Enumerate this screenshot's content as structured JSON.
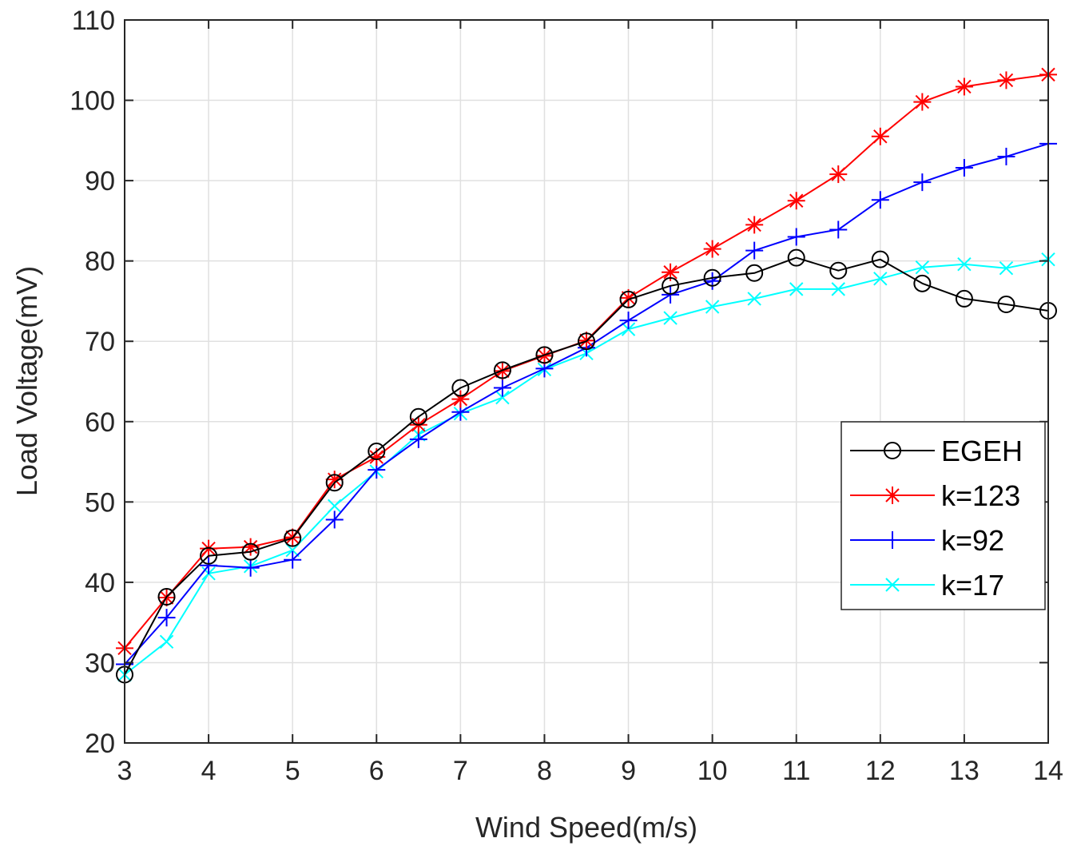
{
  "chart_data": {
    "type": "line",
    "title": "",
    "xlabel": "Wind Speed(m/s)",
    "ylabel": "Load Voltage(mV)",
    "xlim": [
      3,
      14
    ],
    "ylim": [
      20,
      110
    ],
    "xticks": [
      3,
      4,
      5,
      6,
      7,
      8,
      9,
      10,
      11,
      12,
      13,
      14
    ],
    "yticks": [
      20,
      30,
      40,
      50,
      60,
      70,
      80,
      90,
      100,
      110
    ],
    "grid": true,
    "legend_position": "right",
    "x": [
      3,
      3.5,
      4,
      4.5,
      5,
      5.5,
      6,
      6.5,
      7,
      7.5,
      8,
      8.5,
      9,
      9.5,
      10,
      10.5,
      11,
      11.5,
      12,
      12.5,
      13,
      13.5,
      14
    ],
    "series": [
      {
        "name": "EGEH",
        "color": "#000000",
        "marker": "circle",
        "values": [
          28.5,
          38.2,
          43.3,
          43.8,
          45.5,
          52.4,
          56.3,
          60.6,
          64.2,
          66.4,
          68.3,
          70.0,
          75.2,
          76.9,
          77.9,
          78.5,
          80.4,
          78.8,
          80.2,
          77.2,
          75.3,
          74.6,
          73.8
        ]
      },
      {
        "name": "k=123",
        "color": "#ff0000",
        "marker": "asterisk",
        "values": [
          31.8,
          38.1,
          44.2,
          44.4,
          45.6,
          52.8,
          55.6,
          59.6,
          62.8,
          66.3,
          68.2,
          70.1,
          75.4,
          78.6,
          81.5,
          84.5,
          87.5,
          90.8,
          95.5,
          99.8,
          101.7,
          102.5,
          103.2
        ]
      },
      {
        "name": "k=92",
        "color": "#0000ff",
        "marker": "plus",
        "values": [
          29.8,
          35.6,
          42.1,
          41.8,
          42.8,
          47.8,
          54.0,
          57.8,
          61.2,
          64.2,
          66.6,
          69.2,
          72.6,
          75.8,
          77.5,
          81.3,
          83.0,
          83.9,
          87.6,
          89.8,
          91.6,
          93.0,
          94.6
        ]
      },
      {
        "name": "k=17",
        "color": "#00ffff",
        "marker": "x",
        "values": [
          28.5,
          32.6,
          41.1,
          42.0,
          44.0,
          49.5,
          53.8,
          58.4,
          61.0,
          63.0,
          66.5,
          68.5,
          71.5,
          72.9,
          74.3,
          75.3,
          76.5,
          76.5,
          77.8,
          79.2,
          79.6,
          79.1,
          80.2
        ]
      }
    ]
  }
}
